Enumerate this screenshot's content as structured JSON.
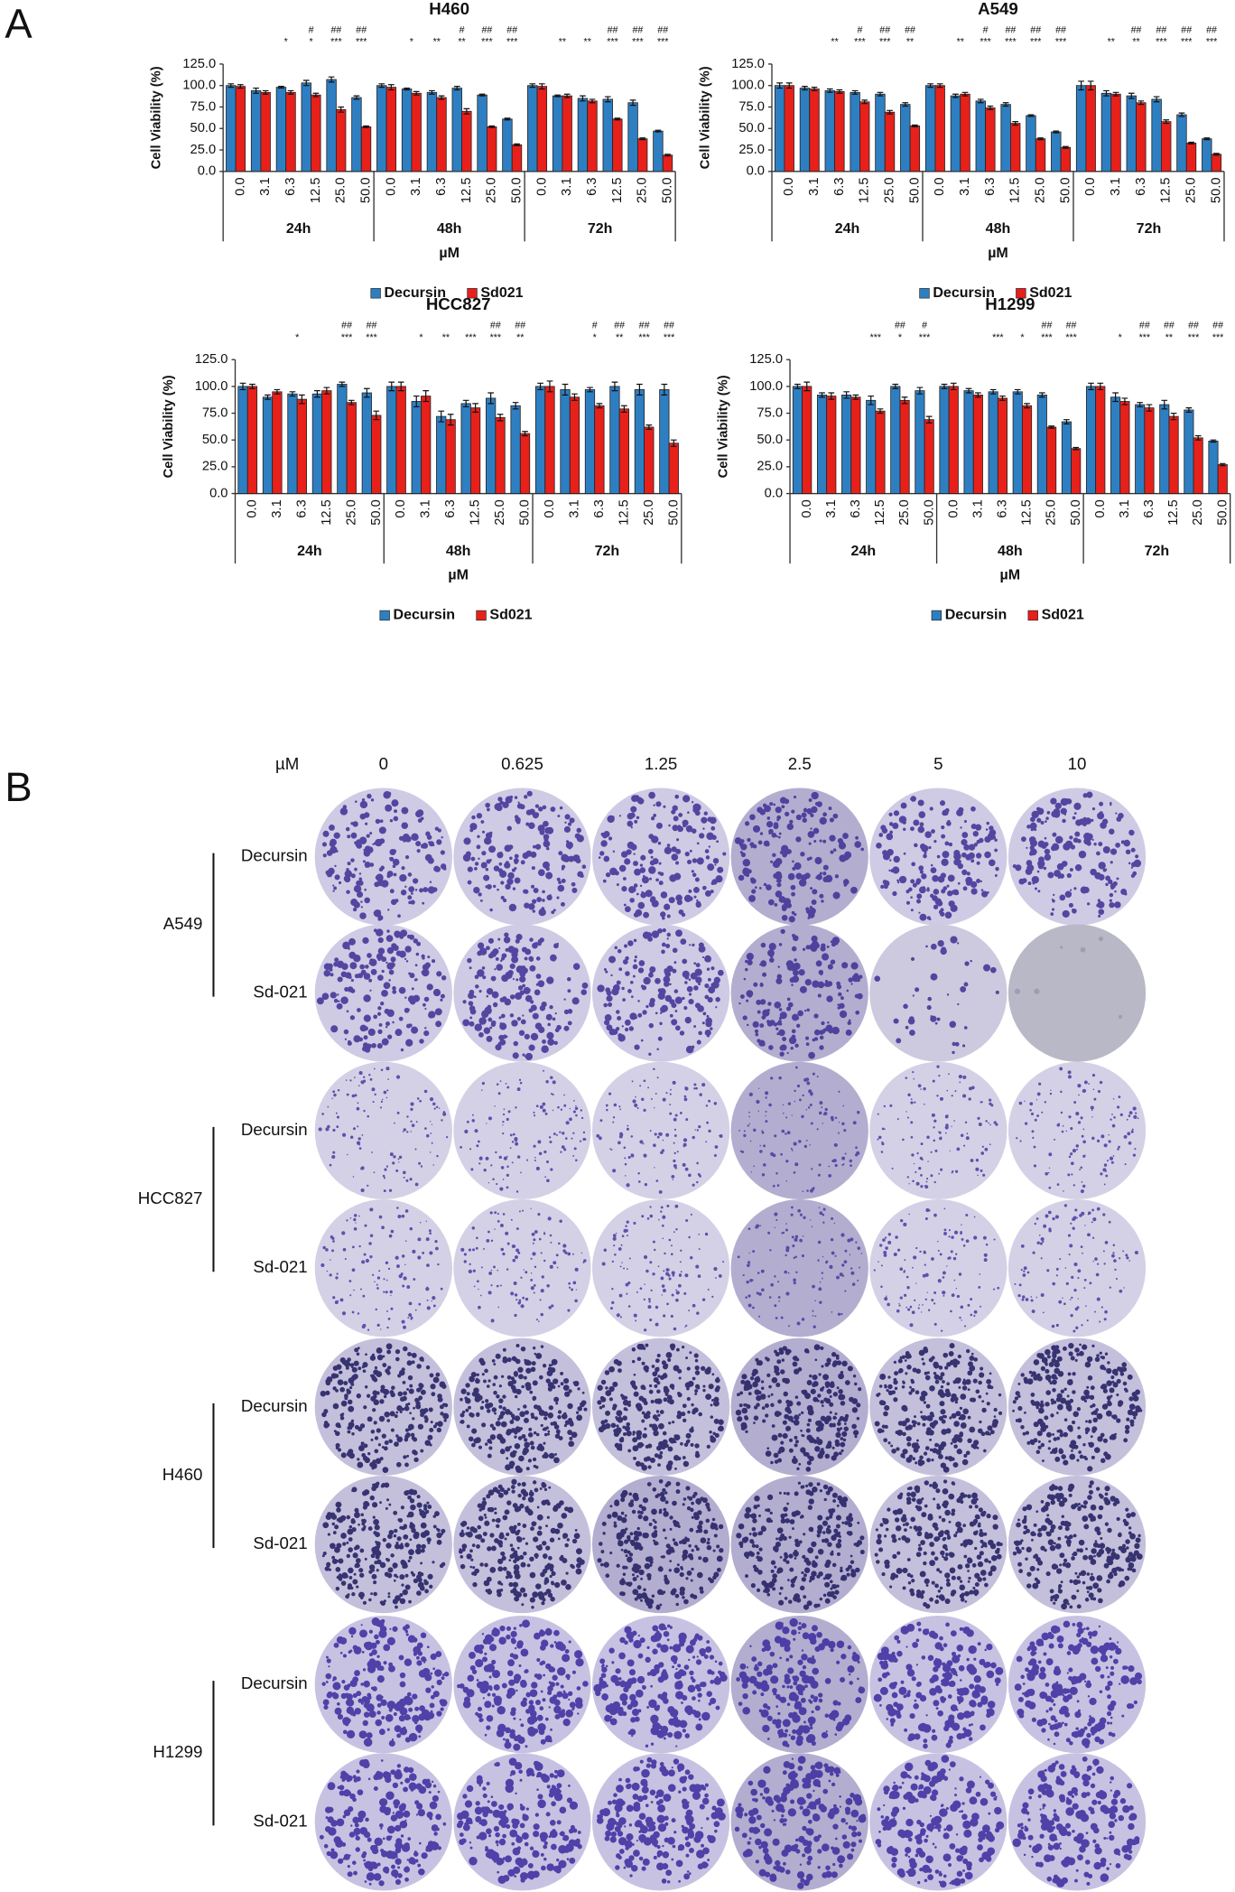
{
  "panel_a": {
    "label": "A"
  },
  "chart_data": [
    {
      "type": "bar",
      "title": "H460",
      "y_label": "Cell Viability (%)",
      "x_label": "µM",
      "categories": [
        "0.0",
        "3.1",
        "6.3",
        "12.5",
        "25.0",
        "50.0",
        "0.0",
        "3.1",
        "6.3",
        "12.5",
        "25.0",
        "50.0",
        "0.0",
        "3.1",
        "6.3",
        "12.5",
        "25.0",
        "50.0"
      ],
      "groups": [
        "24h",
        "48h",
        "72h"
      ],
      "ylim": [
        0,
        125
      ],
      "yticks": [
        {
          "value": 0,
          "label": "0.0"
        },
        {
          "value": 25,
          "label": "25.0"
        },
        {
          "value": 50,
          "label": "50.0"
        },
        {
          "value": 75,
          "label": "75.0"
        },
        {
          "value": 100,
          "label": "100.0"
        },
        {
          "value": 125,
          "label": "125.0"
        }
      ],
      "series": [
        {
          "name": "Decursin",
          "color": "#2e7fc2",
          "values": [
            100,
            94,
            98,
            103,
            107,
            86,
            100,
            96,
            92,
            97,
            89,
            61,
            100,
            88,
            85,
            84,
            80,
            47
          ],
          "errors": [
            2,
            3,
            1,
            3,
            3,
            2,
            2,
            1,
            2,
            2,
            1,
            1,
            2,
            1,
            3,
            3,
            3,
            1
          ]
        },
        {
          "name": "Sd021",
          "color": "#e8201a",
          "values": [
            99,
            92,
            92,
            89,
            72,
            52,
            98,
            91,
            86,
            70,
            52,
            31,
            99,
            88,
            82,
            61,
            38,
            19
          ],
          "errors": [
            2,
            2,
            2,
            2,
            3,
            1,
            3,
            2,
            2,
            3,
            1,
            1,
            3,
            2,
            2,
            1,
            1,
            1
          ]
        }
      ],
      "sig_hash": [
        null,
        null,
        null,
        "#",
        "##",
        "##",
        null,
        null,
        null,
        "#",
        "##",
        "##",
        null,
        null,
        null,
        "##",
        "##",
        "##"
      ],
      "sig_star": [
        null,
        null,
        "*",
        "*",
        "***",
        "***",
        null,
        "*",
        "**",
        "**",
        "***",
        "***",
        null,
        "**",
        "**",
        "***",
        "***",
        "***"
      ]
    },
    {
      "type": "bar",
      "title": "A549",
      "y_label": "Cell Viability (%)",
      "x_label": "µM",
      "categories": [
        "0.0",
        "3.1",
        "6.3",
        "12.5",
        "25.0",
        "50.0",
        "0.0",
        "3.1",
        "6.3",
        "12.5",
        "25.0",
        "50.0",
        "0.0",
        "3.1",
        "6.3",
        "12.5",
        "25.0",
        "50.0"
      ],
      "groups": [
        "24h",
        "48h",
        "72h"
      ],
      "ylim": [
        0,
        125
      ],
      "yticks": [
        {
          "value": 0,
          "label": "0.0"
        },
        {
          "value": 25,
          "label": "25.0"
        },
        {
          "value": 50,
          "label": "50.0"
        },
        {
          "value": 75,
          "label": "75.0"
        },
        {
          "value": 100,
          "label": "100.0"
        },
        {
          "value": 125,
          "label": "125.0"
        }
      ],
      "series": [
        {
          "name": "Decursin",
          "color": "#2e7fc2",
          "values": [
            100,
            97,
            94,
            92,
            90,
            78,
            100,
            88,
            82,
            78,
            65,
            46,
            100,
            91,
            88,
            84,
            66,
            38
          ],
          "errors": [
            3,
            2,
            2,
            2,
            2,
            2,
            2,
            2,
            2,
            2,
            1,
            1,
            5,
            3,
            3,
            3,
            2,
            1
          ]
        },
        {
          "name": "Sd021",
          "color": "#e8201a",
          "values": [
            100,
            96,
            93,
            81,
            69,
            53,
            100,
            90,
            74,
            56,
            38,
            28,
            100,
            90,
            80,
            58,
            33,
            20
          ],
          "errors": [
            3,
            2,
            2,
            2,
            2,
            1,
            2,
            2,
            2,
            2,
            1,
            1,
            5,
            2,
            2,
            2,
            1,
            1
          ]
        }
      ],
      "sig_hash": [
        null,
        null,
        null,
        "#",
        "##",
        "##",
        null,
        null,
        "#",
        "##",
        "##",
        "##",
        null,
        null,
        "##",
        "##",
        "##",
        "##"
      ],
      "sig_star": [
        null,
        null,
        "**",
        "***",
        "***",
        "**",
        null,
        "**",
        "***",
        "***",
        "***",
        "***",
        null,
        "**",
        "**",
        "***",
        "***",
        "***"
      ]
    },
    {
      "type": "bar",
      "title": "HCC827",
      "y_label": "Cell Viability (%)",
      "x_label": "µM",
      "categories": [
        "0.0",
        "3.1",
        "6.3",
        "12.5",
        "25.0",
        "50.0",
        "0.0",
        "3.1",
        "6.3",
        "12.5",
        "25.0",
        "50.0",
        "0.0",
        "3.1",
        "6.3",
        "12.5",
        "25.0",
        "50.0"
      ],
      "groups": [
        "24h",
        "48h",
        "72h"
      ],
      "ylim": [
        0,
        125
      ],
      "yticks": [
        {
          "value": 0,
          "label": "0.0"
        },
        {
          "value": 25,
          "label": "25.0"
        },
        {
          "value": 50,
          "label": "50.0"
        },
        {
          "value": 75,
          "label": "75.0"
        },
        {
          "value": 100,
          "label": "100.0"
        },
        {
          "value": 125,
          "label": "125.0"
        }
      ],
      "series": [
        {
          "name": "Decursin",
          "color": "#2e7fc2",
          "values": [
            100,
            90,
            93,
            93,
            102,
            94,
            100,
            86,
            72,
            84,
            89,
            82,
            100,
            97,
            97,
            100,
            97,
            97
          ],
          "errors": [
            3,
            2,
            2,
            3,
            2,
            4,
            4,
            5,
            5,
            3,
            5,
            3,
            3,
            5,
            2,
            4,
            5,
            5
          ]
        },
        {
          "name": "Sd021",
          "color": "#e8201a",
          "values": [
            100,
            95,
            88,
            96,
            85,
            73,
            100,
            91,
            69,
            80,
            71,
            56,
            100,
            90,
            82,
            79,
            62,
            47
          ],
          "errors": [
            2,
            2,
            4,
            3,
            2,
            4,
            4,
            5,
            5,
            4,
            3,
            2,
            5,
            3,
            2,
            3,
            2,
            3
          ]
        }
      ],
      "sig_hash": [
        null,
        null,
        null,
        null,
        "##",
        "##",
        null,
        null,
        null,
        null,
        "##",
        "##",
        null,
        null,
        "#",
        "##",
        "##",
        "##"
      ],
      "sig_star": [
        null,
        null,
        "*",
        null,
        "***",
        "***",
        null,
        "*",
        "**",
        "***",
        "***",
        "**",
        null,
        null,
        "*",
        "**",
        "***",
        "***"
      ]
    },
    {
      "type": "bar",
      "title": "H1299",
      "y_label": "Cell Viability (%)",
      "x_label": "µM",
      "categories": [
        "0.0",
        "3.1",
        "6.3",
        "12.5",
        "25.0",
        "50.0",
        "0.0",
        "3.1",
        "6.3",
        "12.5",
        "25.0",
        "50.0",
        "0.0",
        "3.1",
        "6.3",
        "12.5",
        "25.0",
        "50.0"
      ],
      "groups": [
        "24h",
        "48h",
        "72h"
      ],
      "ylim": [
        0,
        125
      ],
      "yticks": [
        {
          "value": 0,
          "label": "0.0"
        },
        {
          "value": 25,
          "label": "25.0"
        },
        {
          "value": 50,
          "label": "50.0"
        },
        {
          "value": 75,
          "label": "75.0"
        },
        {
          "value": 100,
          "label": "100.0"
        },
        {
          "value": 125,
          "label": "125.0"
        }
      ],
      "series": [
        {
          "name": "Decursin",
          "color": "#2e7fc2",
          "values": [
            100,
            92,
            92,
            87,
            100,
            96,
            100,
            96,
            95,
            95,
            92,
            67,
            100,
            90,
            83,
            83,
            78,
            49
          ],
          "errors": [
            2,
            2,
            3,
            4,
            2,
            3,
            2,
            2,
            2,
            2,
            2,
            2,
            3,
            4,
            2,
            4,
            2,
            1
          ]
        },
        {
          "name": "Sd021",
          "color": "#e8201a",
          "values": [
            100,
            91,
            90,
            77,
            87,
            69,
            100,
            92,
            89,
            82,
            62,
            42,
            100,
            86,
            80,
            72,
            52,
            27
          ],
          "errors": [
            4,
            3,
            2,
            2,
            3,
            3,
            3,
            2,
            2,
            2,
            1,
            1,
            3,
            3,
            3,
            3,
            2,
            1
          ]
        }
      ],
      "sig_hash": [
        null,
        null,
        null,
        null,
        "##",
        "#",
        null,
        null,
        null,
        null,
        "##",
        "##",
        null,
        null,
        "##",
        "##",
        "##",
        "##"
      ],
      "sig_star": [
        null,
        null,
        null,
        "***",
        "*",
        "***",
        null,
        null,
        "***",
        "*",
        "***",
        "***",
        null,
        "*",
        "***",
        "**",
        "***",
        "***"
      ]
    }
  ],
  "panel_b": {
    "label": "B",
    "unit": "µM",
    "doses": [
      "0",
      "0.625",
      "1.25",
      "2.5",
      "5",
      "10"
    ],
    "cell_lines": [
      {
        "name": "A549",
        "treatments": [
          "Decursin",
          "Sd-021"
        ]
      },
      {
        "name": "HCC827",
        "treatments": [
          "Decursin",
          "Sd-021"
        ]
      },
      {
        "name": "H460",
        "treatments": [
          "Decursin",
          "Sd-021"
        ]
      },
      {
        "name": "H1299",
        "treatments": [
          "Decursin",
          "Sd-021"
        ]
      }
    ]
  }
}
